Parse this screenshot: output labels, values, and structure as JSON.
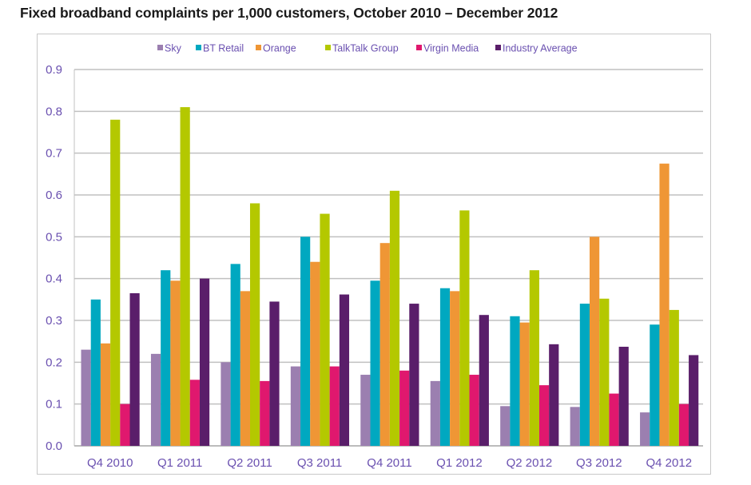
{
  "chart_data": {
    "type": "bar",
    "title": "Fixed broadband complaints per 1,000 customers, October 2010 – December 2012",
    "xlabel": "",
    "ylabel": "",
    "ylim": [
      0,
      0.9
    ],
    "yticks": [
      "0.0",
      "0.1",
      "0.2",
      "0.3",
      "0.4",
      "0.5",
      "0.6",
      "0.7",
      "0.8",
      "0.9"
    ],
    "grid": true,
    "legend_position": "top-center",
    "categories": [
      "Q4 2010",
      "Q1 2011",
      "Q2 2011",
      "Q3 2011",
      "Q4 2011",
      "Q1 2012",
      "Q2 2012",
      "Q3 2012",
      "Q4 2012"
    ],
    "series": [
      {
        "name": "Sky",
        "color": "#9b7fb0",
        "values": [
          0.23,
          0.22,
          0.2,
          0.19,
          0.17,
          0.155,
          0.095,
          0.093,
          0.08
        ]
      },
      {
        "name": "BT Retail",
        "color": "#00a8c0",
        "values": [
          0.35,
          0.42,
          0.435,
          0.5,
          0.395,
          0.377,
          0.31,
          0.34,
          0.29
        ]
      },
      {
        "name": "Orange",
        "color": "#ef9635",
        "values": [
          0.245,
          0.395,
          0.37,
          0.44,
          0.485,
          0.37,
          0.295,
          0.5,
          0.675
        ]
      },
      {
        "name": "TalkTalk Group",
        "color": "#b4c800",
        "values": [
          0.78,
          0.81,
          0.58,
          0.555,
          0.61,
          0.563,
          0.42,
          0.352,
          0.325
        ]
      },
      {
        "name": "Virgin Media",
        "color": "#e0186e",
        "values": [
          0.1,
          0.158,
          0.155,
          0.19,
          0.18,
          0.17,
          0.145,
          0.125,
          0.1
        ]
      },
      {
        "name": "Industry Average",
        "color": "#5a1e6a",
        "values": [
          0.365,
          0.4,
          0.345,
          0.362,
          0.34,
          0.313,
          0.243,
          0.237,
          0.217
        ]
      }
    ]
  }
}
